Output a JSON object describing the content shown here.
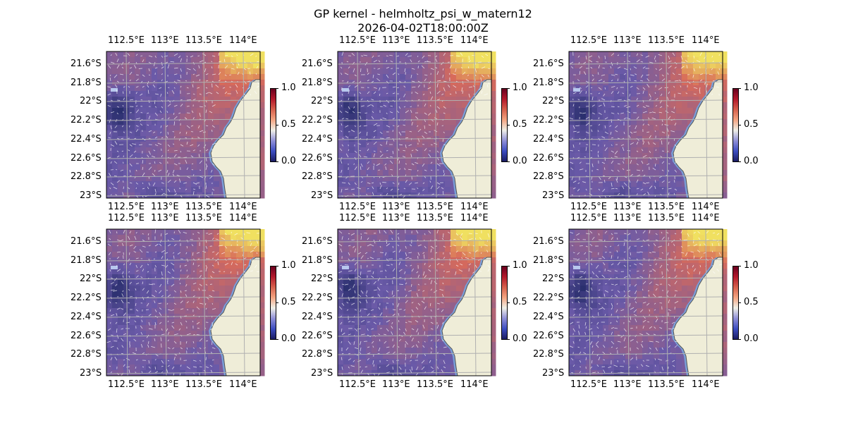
{
  "figure": {
    "title_line1": "GP kernel - helmholtz_psi_w_matern12",
    "title_line2": "2026-04-02T18:00:00Z"
  },
  "axes": {
    "lon_ticks": [
      "112.5°E",
      "113°E",
      "113.5°E",
      "114°E"
    ],
    "lat_ticks": [
      "21.6°S",
      "21.8°S",
      "22°S",
      "22.2°S",
      "22.4°S",
      "22.6°S",
      "22.8°S",
      "23°S"
    ]
  },
  "colorbar": {
    "ticks": [
      "0.0",
      "0.5",
      "1.0"
    ],
    "colors": [
      "#1a1a5e",
      "#3b4cc0",
      "#8f8fd8",
      "#f0f0e8",
      "#f4a582",
      "#d6604d",
      "#b2182b",
      "#67001f"
    ]
  },
  "field_colors": {
    "low": "#2a2f6e",
    "mid": "#6a5aa8",
    "high": "#d86a5a",
    "peak": "#f0e060",
    "land": "#efedd8",
    "coast": "#7a9ed8",
    "grid": "#b0b0b0"
  },
  "panels": [
    {
      "id": "panel-1"
    },
    {
      "id": "panel-2"
    },
    {
      "id": "panel-3"
    },
    {
      "id": "panel-4"
    },
    {
      "id": "panel-5"
    },
    {
      "id": "panel-6"
    }
  ]
}
